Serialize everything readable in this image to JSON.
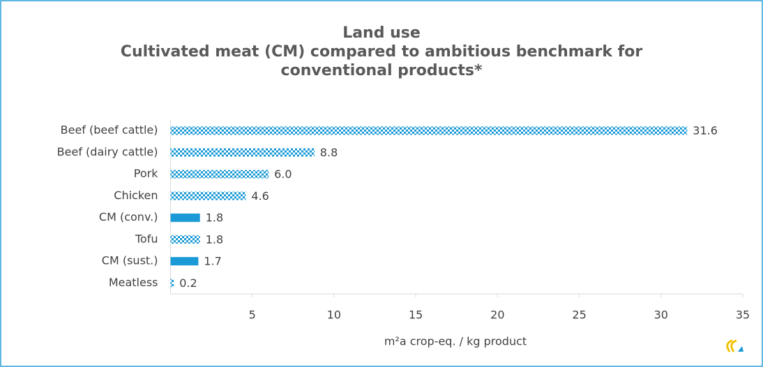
{
  "chart_data": {
    "type": "barh",
    "title": "Land use",
    "subtitle": "Cultivated meat (CM) compared to ambitious benchmark for conventional products*",
    "categories": [
      "Beef (beef cattle)",
      "Beef (dairy cattle)",
      "Pork",
      "Chicken",
      "CM (conv.)",
      "Tofu",
      "CM (sust.)",
      "Meatless"
    ],
    "values": [
      31.6,
      8.8,
      6.0,
      4.6,
      1.8,
      1.8,
      1.7,
      0.2
    ],
    "value_labels": [
      "31.6",
      "8.8",
      "6.0",
      "4.6",
      "1.8",
      "1.8",
      "1.7",
      "0.2"
    ],
    "fill_styles": [
      "checkered",
      "checkered",
      "checkered",
      "checkered",
      "solid",
      "checkered",
      "solid",
      "checkered"
    ],
    "color": "#1a9ad6",
    "xlabel": "m²a crop-eq.  / kg product",
    "xlim": [
      0,
      35
    ],
    "xticks": [
      5,
      10,
      15,
      20,
      25,
      30,
      35
    ]
  }
}
